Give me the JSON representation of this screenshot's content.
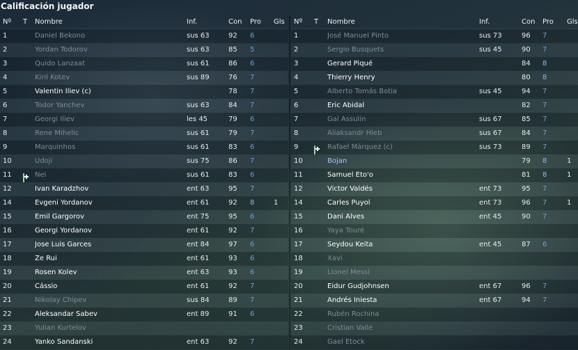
{
  "title": "Calificación jugador",
  "headers": {
    "num": "Nº",
    "t": "T",
    "name": "Nombre",
    "inf": "Inf.",
    "con": "Con",
    "pro": "Pro",
    "gls": "Gls"
  },
  "left_rows": [
    {
      "num": "1",
      "icon": "",
      "name": "Daniel Bekono",
      "inf": "sus 63",
      "con": "92",
      "pro": "6",
      "gls": "",
      "dim": true
    },
    {
      "num": "2",
      "icon": "",
      "name": "Yordan Todorov",
      "inf": "sus 63",
      "con": "85",
      "pro": "5",
      "gls": "",
      "dim": true
    },
    {
      "num": "3",
      "icon": "",
      "name": "Quido Lanzaat",
      "inf": "sus 61",
      "con": "86",
      "pro": "6",
      "gls": "",
      "dim": true
    },
    {
      "num": "4",
      "icon": "",
      "name": "Kiril Kotev",
      "inf": "sus 89",
      "con": "76",
      "pro": "7",
      "gls": "",
      "dim": true
    },
    {
      "num": "5",
      "icon": "",
      "name": "Valentin Iliev (c)",
      "inf": "",
      "con": "78",
      "pro": "7",
      "gls": "",
      "dim": false
    },
    {
      "num": "6",
      "icon": "",
      "name": "Todor Yanchev",
      "inf": "sus 63",
      "con": "84",
      "pro": "7",
      "gls": "",
      "dim": true
    },
    {
      "num": "7",
      "icon": "red-cross-icon",
      "name": "Georgi Iliev",
      "inf": "les 45",
      "con": "79",
      "pro": "6",
      "gls": "",
      "dim": true
    },
    {
      "num": "8",
      "icon": "",
      "name": "Rene Mihelic",
      "inf": "sus 61",
      "con": "79",
      "pro": "7",
      "gls": "",
      "dim": true
    },
    {
      "num": "9",
      "icon": "",
      "name": "Marquinhos",
      "inf": "sus 61",
      "con": "83",
      "pro": "6",
      "gls": "",
      "dim": true
    },
    {
      "num": "10",
      "icon": "",
      "name": "Udoji",
      "inf": "sus 75",
      "con": "86",
      "pro": "7",
      "gls": "",
      "dim": true
    },
    {
      "num": "11",
      "icon": "green-plus-icon",
      "name": "Nei",
      "inf": "sus 61",
      "con": "83",
      "pro": "6",
      "gls": "",
      "dim": true
    },
    {
      "num": "12",
      "icon": "",
      "name": "Ivan Karadzhov",
      "inf": "ent 63",
      "con": "95",
      "pro": "7",
      "gls": "",
      "dim": false
    },
    {
      "num": "14",
      "icon": "",
      "name": "Evgeni Yordanov",
      "inf": "ent 61",
      "con": "92",
      "pro": "8",
      "gls": "1",
      "dim": false
    },
    {
      "num": "15",
      "icon": "",
      "name": "Emil Gargorov",
      "inf": "ent 75",
      "con": "95",
      "pro": "6",
      "gls": "",
      "dim": false
    },
    {
      "num": "16",
      "icon": "",
      "name": "Georgi Yordanov",
      "inf": "ent 61",
      "con": "92",
      "pro": "7",
      "gls": "",
      "dim": false
    },
    {
      "num": "17",
      "icon": "",
      "name": "Jose Luis Garces",
      "inf": "ent 84",
      "con": "97",
      "pro": "6",
      "gls": "",
      "dim": false
    },
    {
      "num": "18",
      "icon": "",
      "name": "Ze Rui",
      "inf": "ent 61",
      "con": "93",
      "pro": "6",
      "gls": "",
      "dim": false
    },
    {
      "num": "19",
      "icon": "",
      "name": "Rosen Kolev",
      "inf": "ent 63",
      "con": "93",
      "pro": "6",
      "gls": "",
      "dim": false
    },
    {
      "num": "20",
      "icon": "",
      "name": "Cássio",
      "inf": "ent 61",
      "con": "92",
      "pro": "7",
      "gls": "",
      "dim": false
    },
    {
      "num": "21",
      "icon": "",
      "name": "Nikolay Chipev",
      "inf": "sus 84",
      "con": "89",
      "pro": "7",
      "gls": "",
      "dim": true
    },
    {
      "num": "22",
      "icon": "",
      "name": "Aleksandar Sabev",
      "inf": "ent 89",
      "con": "91",
      "pro": "6",
      "gls": "",
      "dim": false
    },
    {
      "num": "23",
      "icon": "",
      "name": "Yulian Kurtelov",
      "inf": "",
      "con": "",
      "pro": "",
      "gls": "",
      "dim": true
    },
    {
      "num": "24",
      "icon": "",
      "name": "Yanko Sandanski",
      "inf": "ent 63",
      "con": "92",
      "pro": "7",
      "gls": "",
      "dim": false
    }
  ],
  "right_rows": [
    {
      "num": "1",
      "icon": "",
      "name": "José Manuel Pinto",
      "inf": "sus 73",
      "con": "96",
      "pro": "7",
      "gls": "",
      "dim": true
    },
    {
      "num": "2",
      "icon": "yellow-card-icon",
      "name": "Sergio Busquets",
      "inf": "sus 45",
      "con": "90",
      "pro": "7",
      "gls": "",
      "dim": true
    },
    {
      "num": "3",
      "icon": "",
      "name": "Gerard Piqué",
      "inf": "",
      "con": "84",
      "pro": "8",
      "gls": "",
      "dim": false
    },
    {
      "num": "4",
      "icon": "",
      "name": "Thierry Henry",
      "inf": "",
      "con": "80",
      "pro": "8",
      "gls": "",
      "dim": false
    },
    {
      "num": "5",
      "icon": "yellow-card-icon",
      "name": "Alberto Tomás Botia",
      "inf": "sus 45",
      "con": "94",
      "pro": "7",
      "gls": "",
      "dim": true
    },
    {
      "num": "6",
      "icon": "",
      "name": "Eric Abidal",
      "inf": "",
      "con": "82",
      "pro": "7",
      "gls": "",
      "dim": false
    },
    {
      "num": "7",
      "icon": "",
      "name": "Gai Assulin",
      "inf": "sus 67",
      "con": "85",
      "pro": "7",
      "gls": "",
      "dim": true
    },
    {
      "num": "8",
      "icon": "",
      "name": "Aliaksandr Hleb",
      "inf": "sus 67",
      "con": "84",
      "pro": "7",
      "gls": "",
      "dim": true
    },
    {
      "num": "9",
      "icon": "green-plus-icon",
      "name": "Rafael Márquez (c)",
      "inf": "sus 73",
      "con": "89",
      "pro": "7",
      "gls": "",
      "dim": true
    },
    {
      "num": "10",
      "icon": "star-icon",
      "name": "Bojan",
      "inf": "",
      "con": "79",
      "pro": "8",
      "gls": "1",
      "dim": false,
      "star": true
    },
    {
      "num": "11",
      "icon": "",
      "name": "Samuel Eto'o",
      "inf": "",
      "con": "81",
      "pro": "8",
      "gls": "1",
      "dim": false
    },
    {
      "num": "12",
      "icon": "",
      "name": "Victor Valdés",
      "inf": "ent 73",
      "con": "95",
      "pro": "7",
      "gls": "",
      "dim": false
    },
    {
      "num": "14",
      "icon": "",
      "name": "Carles Puyol",
      "inf": "ent 73",
      "con": "96",
      "pro": "7",
      "gls": "1",
      "dim": false
    },
    {
      "num": "15",
      "icon": "",
      "name": "Dani Alves",
      "inf": "ent 45",
      "con": "90",
      "pro": "7",
      "gls": "",
      "dim": false
    },
    {
      "num": "16",
      "icon": "",
      "name": "Yaya Touré",
      "inf": "",
      "con": "",
      "pro": "",
      "gls": "",
      "dim": true
    },
    {
      "num": "17",
      "icon": "",
      "name": "Seydou Keita",
      "inf": "ent 45",
      "con": "87",
      "pro": "6",
      "gls": "",
      "dim": false
    },
    {
      "num": "18",
      "icon": "",
      "name": "Xavi",
      "inf": "",
      "con": "",
      "pro": "",
      "gls": "",
      "dim": true
    },
    {
      "num": "19",
      "icon": "",
      "name": "Lionel Messi",
      "inf": "",
      "con": "",
      "pro": "",
      "gls": "",
      "dim": true
    },
    {
      "num": "20",
      "icon": "",
      "name": "Eidur Gudjohnsen",
      "inf": "ent 67",
      "con": "96",
      "pro": "7",
      "gls": "",
      "dim": false
    },
    {
      "num": "21",
      "icon": "",
      "name": "Andrés Iniesta",
      "inf": "ent 67",
      "con": "94",
      "pro": "7",
      "gls": "",
      "dim": false
    },
    {
      "num": "22",
      "icon": "",
      "name": "Rubén Rochina",
      "inf": "",
      "con": "",
      "pro": "",
      "gls": "",
      "dim": true
    },
    {
      "num": "23",
      "icon": "",
      "name": "Cristian Valle",
      "inf": "",
      "con": "",
      "pro": "",
      "gls": "",
      "dim": true
    },
    {
      "num": "24",
      "icon": "",
      "name": "Gael Etock",
      "inf": "",
      "con": "",
      "pro": "",
      "gls": "",
      "dim": true
    }
  ]
}
